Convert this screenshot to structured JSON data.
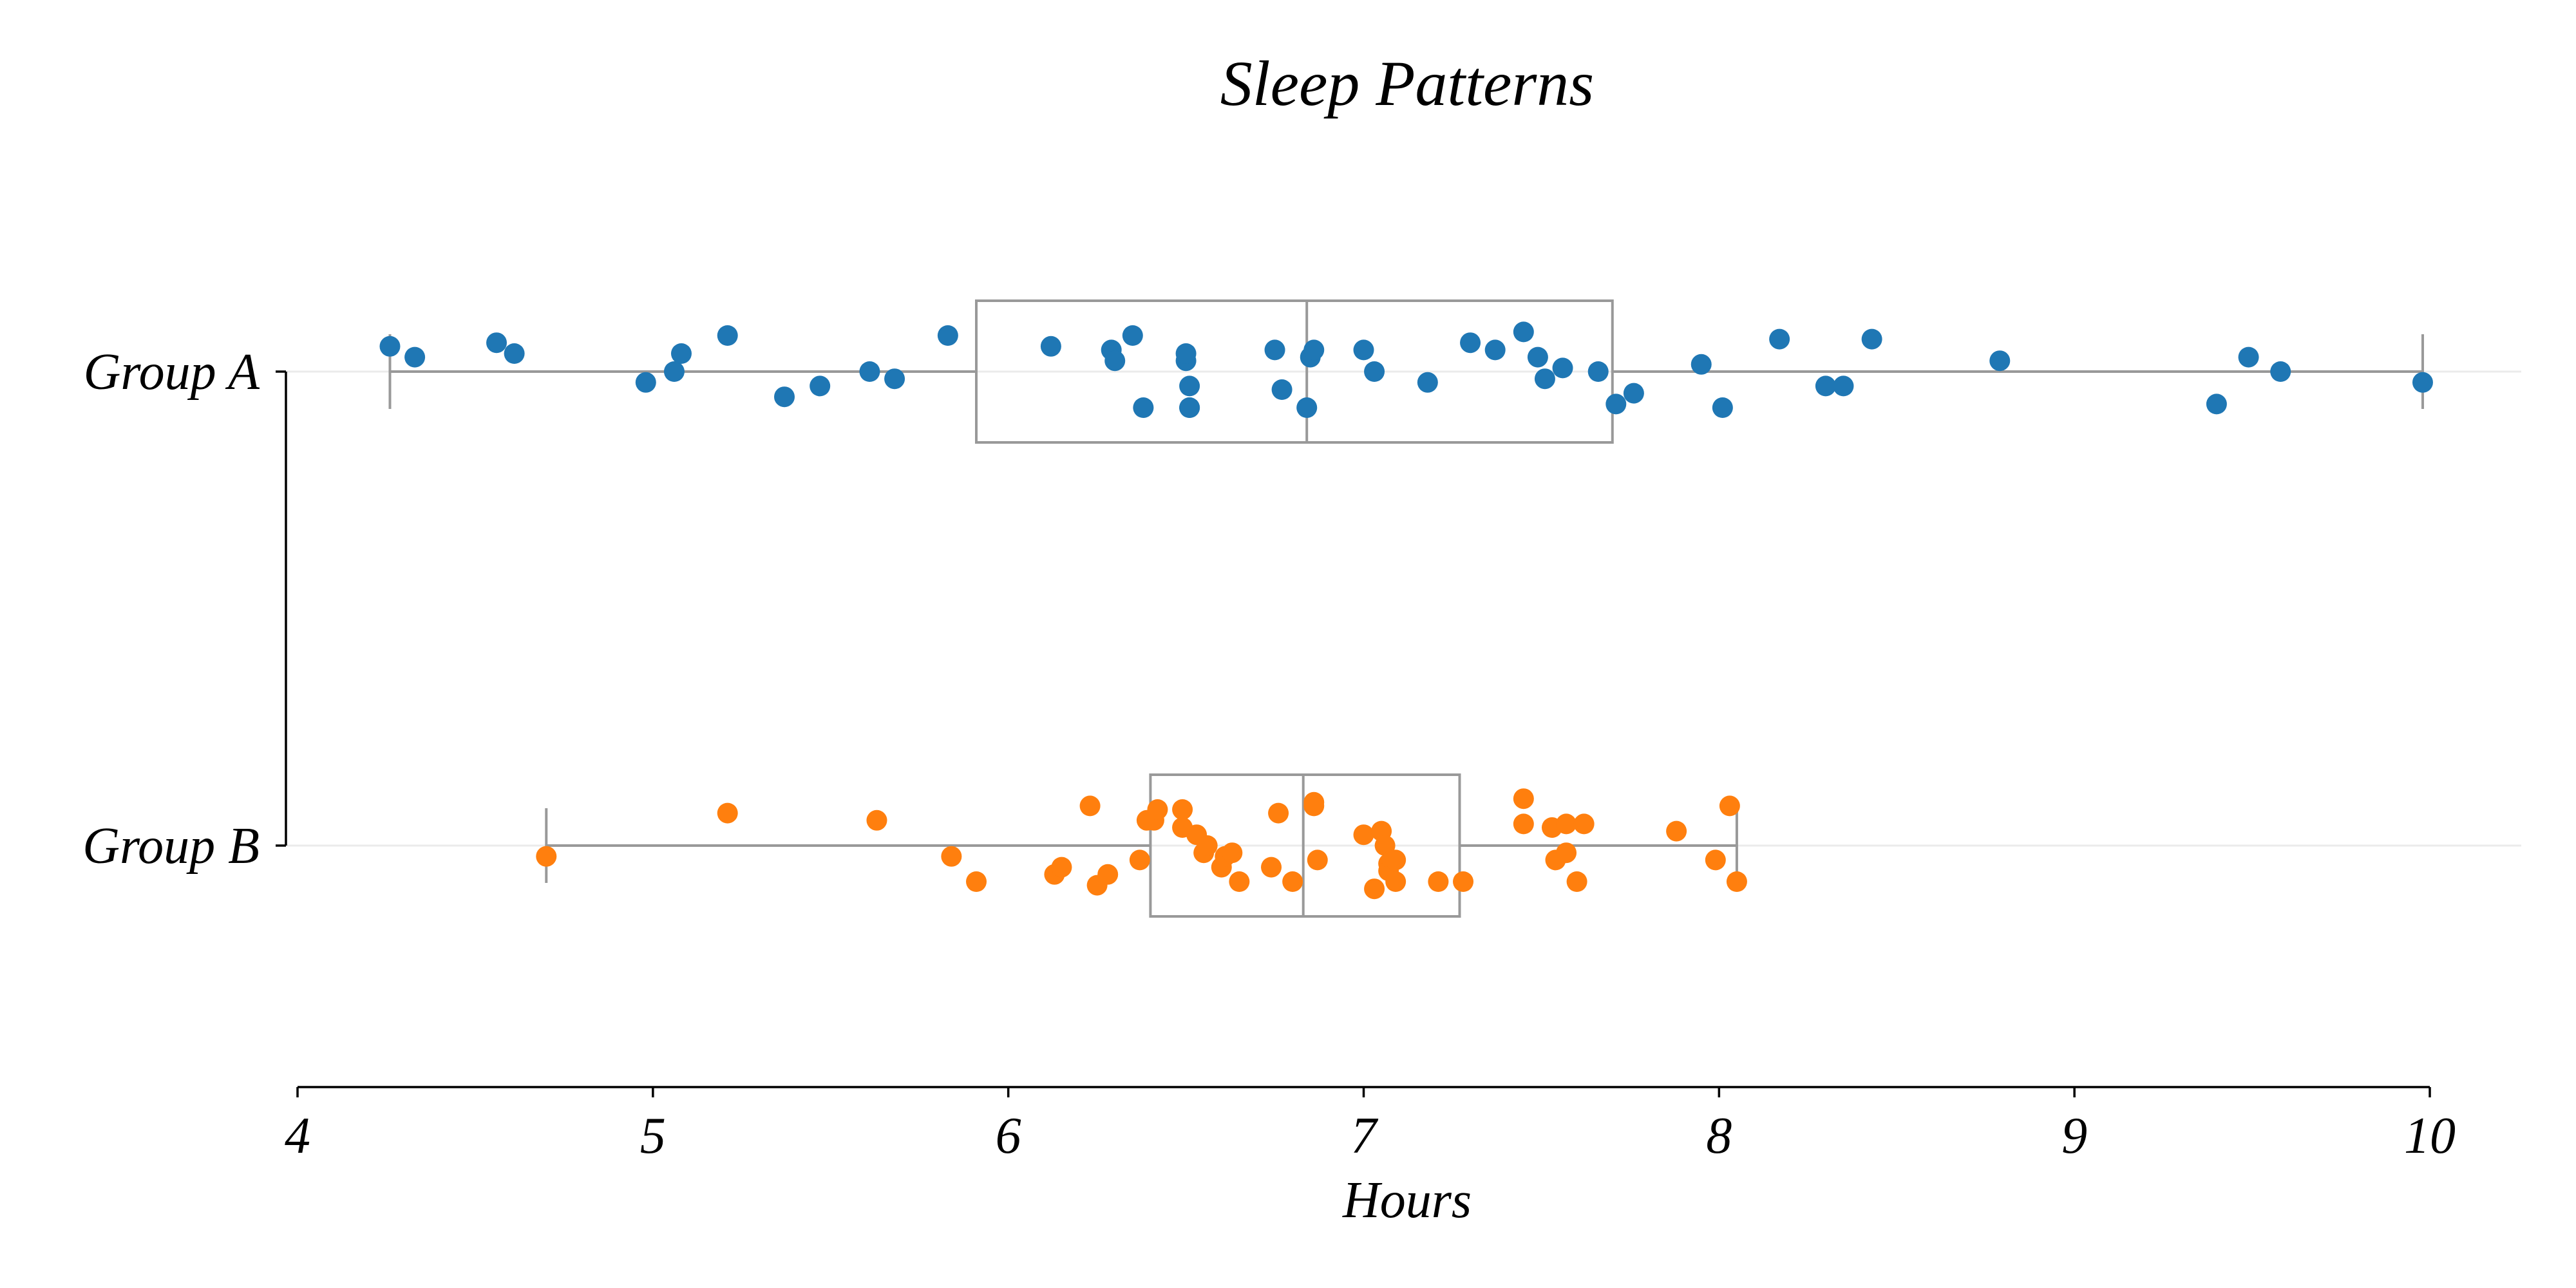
{
  "chart_data": {
    "type": "box",
    "title": "Sleep Patterns",
    "xlabel": "Hours",
    "ylabel": "",
    "xlim": [
      4,
      10
    ],
    "xticks": [
      "4",
      "5",
      "6",
      "7",
      "8",
      "9",
      "10"
    ],
    "categories": [
      "Group A",
      "Group B"
    ],
    "grid": "horizontal",
    "box_color": "#999999",
    "series": [
      {
        "category": "Group A",
        "color": "#1f77b4",
        "box": {
          "min": 4.26,
          "q1": 5.91,
          "median": 6.84,
          "q3": 7.7,
          "max": 9.98
        },
        "points": [
          4.26,
          4.33,
          4.56,
          4.61,
          4.98,
          5.06,
          5.08,
          5.21,
          5.37,
          5.47,
          5.61,
          5.68,
          5.83,
          6.12,
          6.29,
          6.3,
          6.35,
          6.38,
          6.5,
          6.5,
          6.51,
          6.51,
          6.51,
          6.75,
          6.77,
          6.84,
          6.85,
          6.86,
          7.0,
          7.03,
          7.18,
          7.3,
          7.37,
          7.45,
          7.49,
          7.51,
          7.56,
          7.66,
          7.71,
          7.76,
          7.95,
          8.01,
          8.17,
          8.3,
          8.35,
          8.43,
          8.79,
          9.4,
          9.49,
          9.58,
          9.98
        ],
        "jitter": [
          0.07,
          0.04,
          0.08,
          0.05,
          -0.03,
          0.0,
          0.05,
          0.1,
          -0.07,
          -0.04,
          0.0,
          -0.02,
          0.1,
          0.07,
          0.06,
          0.03,
          0.1,
          -0.1,
          0.03,
          0.05,
          -0.04,
          -0.1,
          -0.1,
          0.06,
          -0.05,
          -0.1,
          0.04,
          0.06,
          0.06,
          0.0,
          -0.03,
          0.08,
          0.06,
          0.11,
          0.04,
          -0.02,
          0.01,
          0.0,
          -0.09,
          -0.06,
          0.02,
          -0.1,
          0.09,
          -0.04,
          -0.04,
          0.09,
          0.03,
          -0.09,
          0.04,
          0.0,
          -0.03
        ]
      },
      {
        "category": "Group B",
        "color": "#ff7f0e",
        "box": {
          "min": 4.7,
          "q1": 6.4,
          "median": 6.83,
          "q3": 7.27,
          "max": 8.05
        },
        "points": [
          4.7,
          5.21,
          5.63,
          5.84,
          5.91,
          6.13,
          6.15,
          6.23,
          6.25,
          6.28,
          6.37,
          6.39,
          6.41,
          6.42,
          6.49,
          6.49,
          6.53,
          6.55,
          6.56,
          6.6,
          6.61,
          6.63,
          6.65,
          6.74,
          6.76,
          6.8,
          6.86,
          6.86,
          6.87,
          7.0,
          7.03,
          7.05,
          7.06,
          7.07,
          7.07,
          7.08,
          7.09,
          7.09,
          7.21,
          7.28,
          7.45,
          7.45,
          7.53,
          7.54,
          7.57,
          7.57,
          7.6,
          7.62,
          7.88,
          7.99,
          8.03,
          8.05
        ],
        "jitter": [
          -0.03,
          0.09,
          0.07,
          -0.03,
          -0.1,
          -0.08,
          -0.06,
          0.11,
          -0.11,
          -0.08,
          -0.04,
          0.07,
          0.07,
          0.1,
          0.05,
          0.1,
          0.03,
          -0.02,
          0.0,
          -0.06,
          -0.03,
          -0.02,
          -0.1,
          -0.06,
          0.09,
          -0.1,
          0.11,
          0.12,
          -0.04,
          0.03,
          -0.12,
          0.04,
          0.0,
          -0.05,
          -0.07,
          -0.04,
          -0.1,
          -0.04,
          -0.1,
          -0.1,
          0.06,
          0.13,
          0.05,
          -0.04,
          0.06,
          -0.02,
          -0.1,
          0.06,
          0.04,
          -0.04,
          0.11,
          -0.1
        ]
      }
    ]
  }
}
